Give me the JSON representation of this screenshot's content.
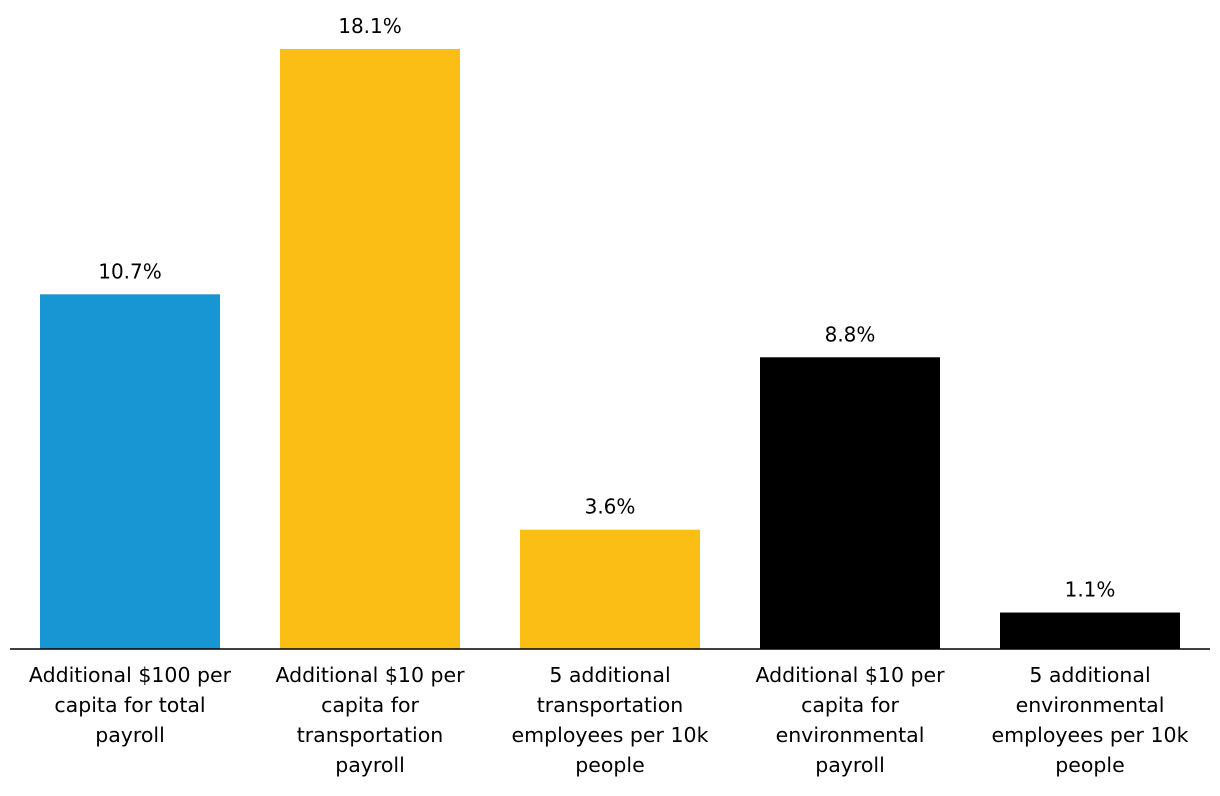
{
  "chart_data": {
    "type": "bar",
    "categories": [
      [
        "Additional $100 per",
        "capita for total",
        "payroll"
      ],
      [
        "Additional $10 per",
        "capita for",
        "transportation",
        "payroll"
      ],
      [
        "5 additional",
        "transportation",
        "employees per 10k",
        "people"
      ],
      [
        "Additional $10 per",
        "capita for",
        "environmental",
        "payroll"
      ],
      [
        "5 additional",
        "environmental",
        "employees per 10k",
        "people"
      ]
    ],
    "values": [
      10.7,
      18.1,
      3.6,
      8.8,
      1.1
    ],
    "value_labels": [
      "10.7%",
      "18.1%",
      "3.6%",
      "8.8%",
      "1.1%"
    ],
    "colors": [
      "#1896d3",
      "#fbbe15",
      "#fbbe15",
      "#000000",
      "#000000"
    ],
    "title": "",
    "xlabel": "",
    "ylabel": "",
    "ylim": [
      0,
      18.1
    ],
    "grid": false,
    "legend": "none"
  }
}
